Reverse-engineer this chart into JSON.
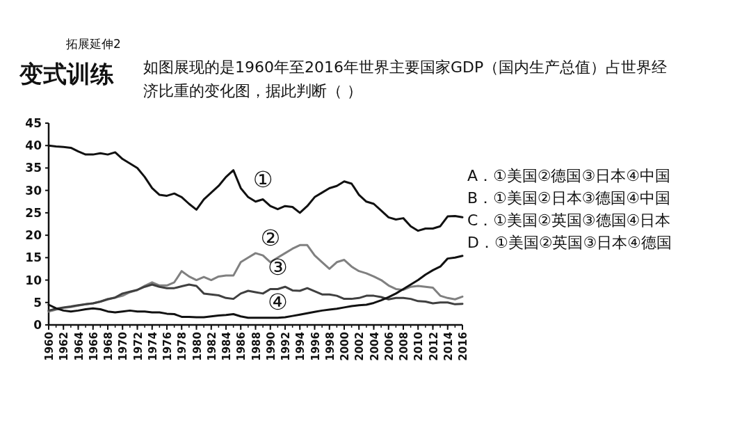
{
  "chart_data": {
    "type": "line",
    "title": "变式训练",
    "subtitle": "如图展现的是1960年至2016年世界主要国家GDP（国内生产总值）占世界经济比重的变化图，据此判断（    ）",
    "x": [
      1960,
      1961,
      1962,
      1963,
      1964,
      1965,
      1966,
      1967,
      1968,
      1969,
      1970,
      1971,
      1972,
      1973,
      1974,
      1975,
      1976,
      1977,
      1978,
      1979,
      1980,
      1981,
      1982,
      1983,
      1984,
      1985,
      1986,
      1987,
      1988,
      1989,
      1990,
      1991,
      1992,
      1993,
      1994,
      1995,
      1996,
      1997,
      1998,
      1999,
      2000,
      2001,
      2002,
      2003,
      2004,
      2005,
      2006,
      2007,
      2008,
      2009,
      2010,
      2011,
      2012,
      2013,
      2014,
      2015,
      2016
    ],
    "series": [
      {
        "name": "①",
        "color": "#111111",
        "values": [
          40,
          39.8,
          39.7,
          39.5,
          38.7,
          38,
          38,
          38.3,
          38,
          38.5,
          37,
          36,
          35,
          33,
          30.5,
          29,
          28.8,
          29.3,
          28.5,
          27,
          25.7,
          28,
          29.5,
          31,
          33,
          34.5,
          30.5,
          28.5,
          27.5,
          28,
          26.5,
          25.8,
          26.5,
          26.3,
          25,
          26.5,
          28.5,
          29.5,
          30.5,
          31,
          32,
          31.5,
          29,
          27.5,
          27,
          25.5,
          24,
          23.5,
          23.8,
          22,
          21,
          21.5,
          21.5,
          22,
          24.2,
          24.3,
          24
        ]
      },
      {
        "name": "②",
        "color": "#808080",
        "values": [
          3,
          3.4,
          3.8,
          4,
          4.3,
          4.6,
          4.8,
          5.2,
          5.8,
          6.1,
          6.5,
          7.3,
          7.8,
          8.7,
          9.5,
          8.8,
          8.8,
          9.5,
          12,
          10.8,
          10,
          10.7,
          10,
          10.8,
          11,
          11,
          14,
          15,
          16,
          15.5,
          14,
          15,
          16,
          17,
          17.8,
          17.8,
          15.5,
          14,
          12.5,
          14,
          14.5,
          13,
          12,
          11.5,
          10.8,
          10,
          8.8,
          8,
          7.8,
          8.5,
          8.7,
          8.5,
          8.3,
          6.5,
          6,
          5.7,
          6.3
        ]
      },
      {
        "name": "③",
        "color": "#404040",
        "values": [
          3.2,
          3.6,
          3.9,
          4.1,
          4.4,
          4.6,
          4.8,
          5.2,
          5.7,
          6.1,
          7,
          7.4,
          7.8,
          8.5,
          9,
          8.5,
          8.2,
          8.2,
          8.6,
          9,
          8.7,
          7,
          6.8,
          6.6,
          6,
          5.8,
          7,
          7.6,
          7.3,
          7,
          8,
          8,
          8.5,
          7.7,
          7.6,
          8.2,
          7.5,
          6.8,
          6.8,
          6.5,
          5.8,
          5.8,
          6,
          6.5,
          6.5,
          6.2,
          5.7,
          6,
          6,
          5.8,
          5.3,
          5.2,
          4.8,
          5,
          5,
          4.6,
          4.7
        ]
      },
      {
        "name": "④",
        "color": "#111111",
        "values": [
          4.5,
          3.7,
          3.2,
          3,
          3.2,
          3.5,
          3.7,
          3.5,
          3,
          2.8,
          3,
          3.2,
          3,
          3,
          2.8,
          2.8,
          2.5,
          2.4,
          1.8,
          1.8,
          1.7,
          1.7,
          1.9,
          2.1,
          2.2,
          2.4,
          1.9,
          1.6,
          1.6,
          1.6,
          1.6,
          1.6,
          1.7,
          2,
          2.3,
          2.6,
          2.9,
          3.2,
          3.4,
          3.6,
          3.9,
          4.2,
          4.4,
          4.5,
          4.9,
          5.5,
          6.2,
          7,
          8,
          9,
          10,
          11.2,
          12.2,
          13,
          14.8,
          15,
          15.4
        ]
      }
    ],
    "xlim": [
      1960,
      2016
    ],
    "xticks": [
      1960,
      1962,
      1964,
      1966,
      1968,
      1970,
      1972,
      1974,
      1976,
      1978,
      1980,
      1982,
      1984,
      1986,
      1988,
      1990,
      1992,
      1994,
      1996,
      1998,
      2000,
      2002,
      2004,
      2006,
      2008,
      2010,
      2012,
      2014,
      2016
    ],
    "ylim": [
      0,
      45
    ],
    "yticks": [
      0,
      5,
      10,
      15,
      20,
      25,
      30,
      35,
      40,
      45
    ],
    "grid": false,
    "annotations": [
      "拓展延伸2",
      "A．①美国②德国③日本④中国",
      "B．①美国②日本③德国④中国",
      "C．①美国②英国③德国④日本",
      "D．①美国②英国③日本④德国"
    ]
  }
}
